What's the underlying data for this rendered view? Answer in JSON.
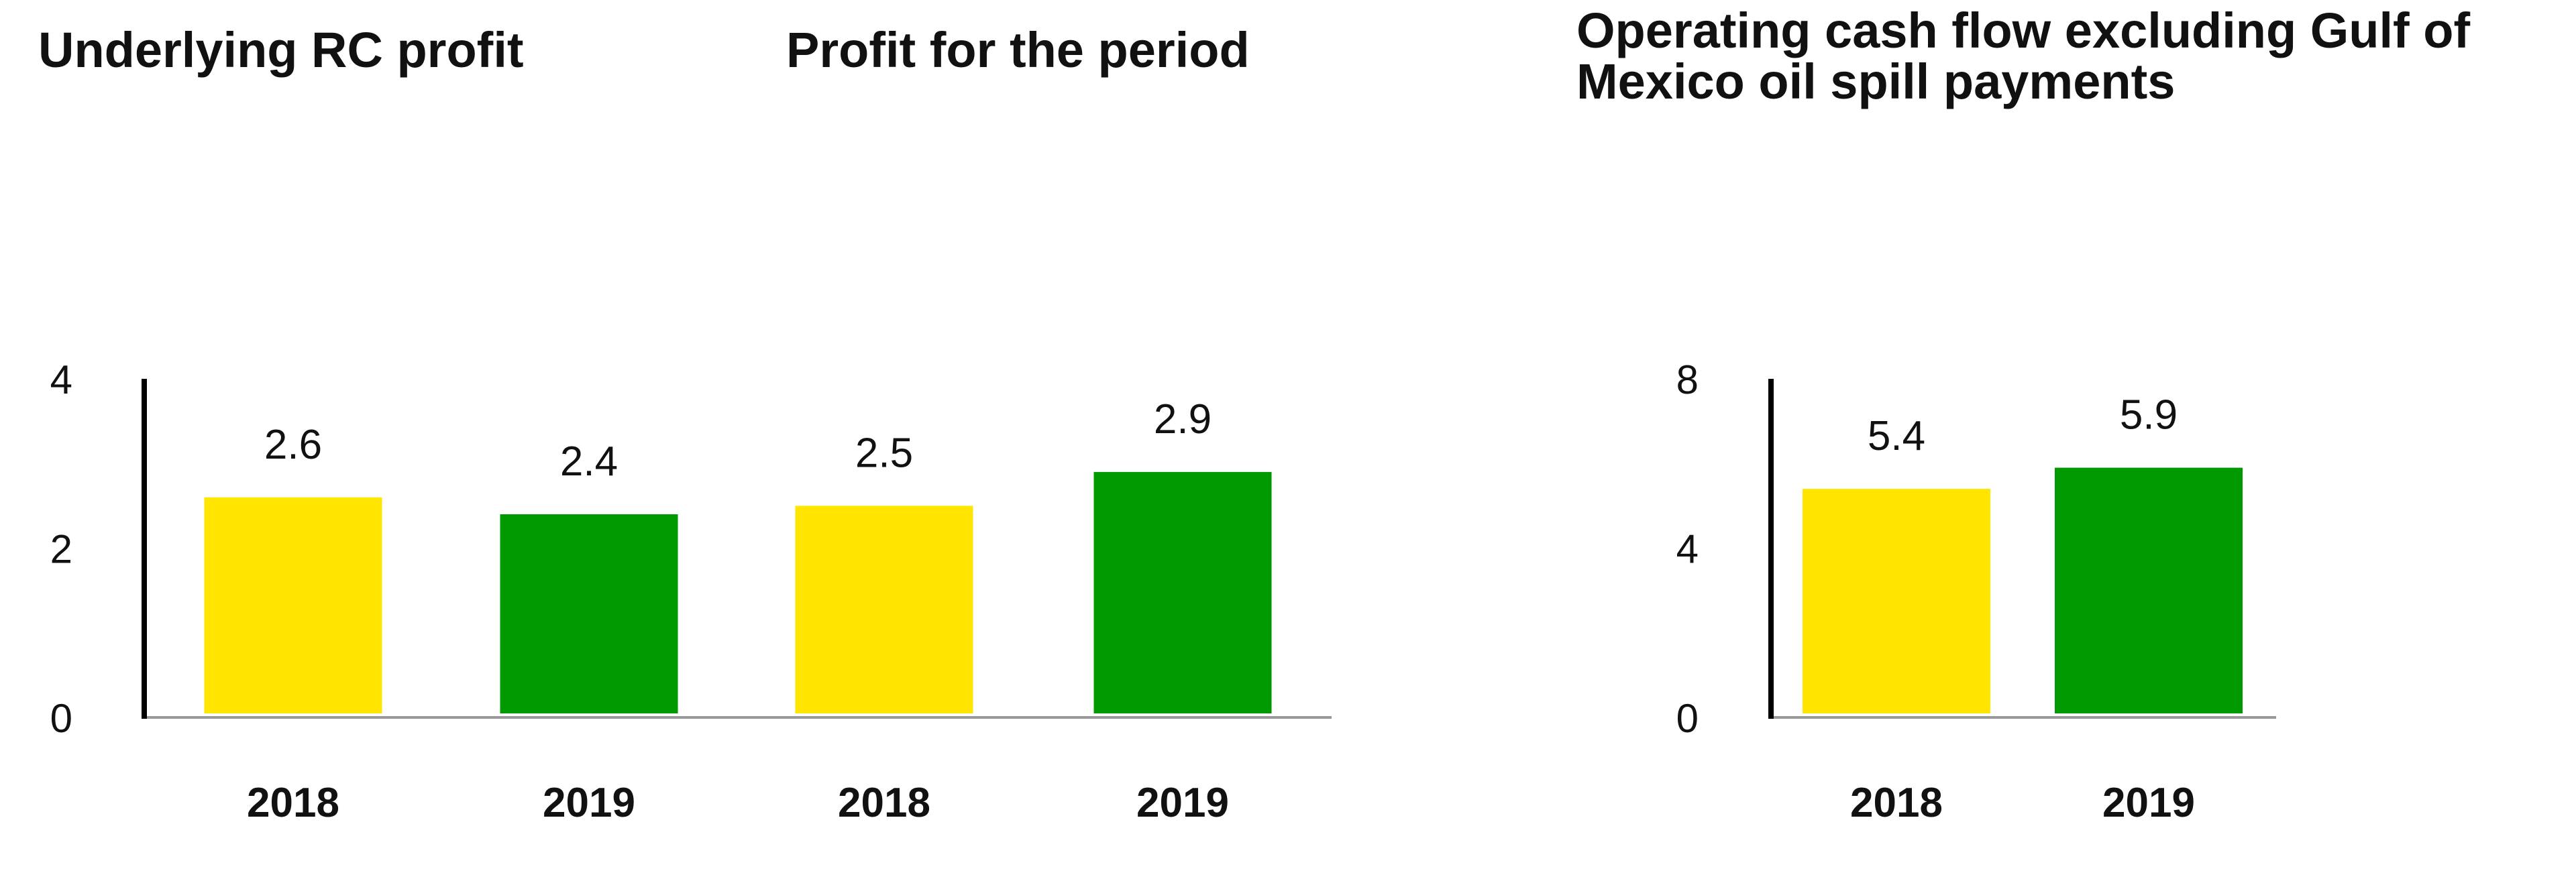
{
  "colors": {
    "y2018": "#FFE500",
    "y2019": "#009900",
    "axis": "#000000",
    "baseline": "#999999"
  },
  "chart_data": [
    {
      "type": "bar",
      "title": "Underlying RC profit",
      "categories": [
        "2018",
        "2019"
      ],
      "values": [
        2.6,
        2.4
      ],
      "data_labels": [
        "2.6",
        "2.4"
      ],
      "ylim": [
        0,
        4
      ],
      "yticks": [
        "0",
        "2",
        "4"
      ],
      "grid": false
    },
    {
      "type": "bar",
      "title": "Profit for the period",
      "categories": [
        "2018",
        "2019"
      ],
      "values": [
        2.5,
        2.9
      ],
      "data_labels": [
        "2.5",
        "2.9"
      ],
      "ylim": [
        0,
        4
      ],
      "grid": false
    },
    {
      "type": "bar",
      "title": [
        "Operating cash flow excluding Gulf of",
        "Mexico oil spill payments"
      ],
      "categories": [
        "2018",
        "2019"
      ],
      "values": [
        5.4,
        5.9
      ],
      "data_labels": [
        "5.4",
        "5.9"
      ],
      "ylim": [
        0,
        8
      ],
      "yticks": [
        "0",
        "4",
        "8"
      ],
      "grid": false
    }
  ]
}
